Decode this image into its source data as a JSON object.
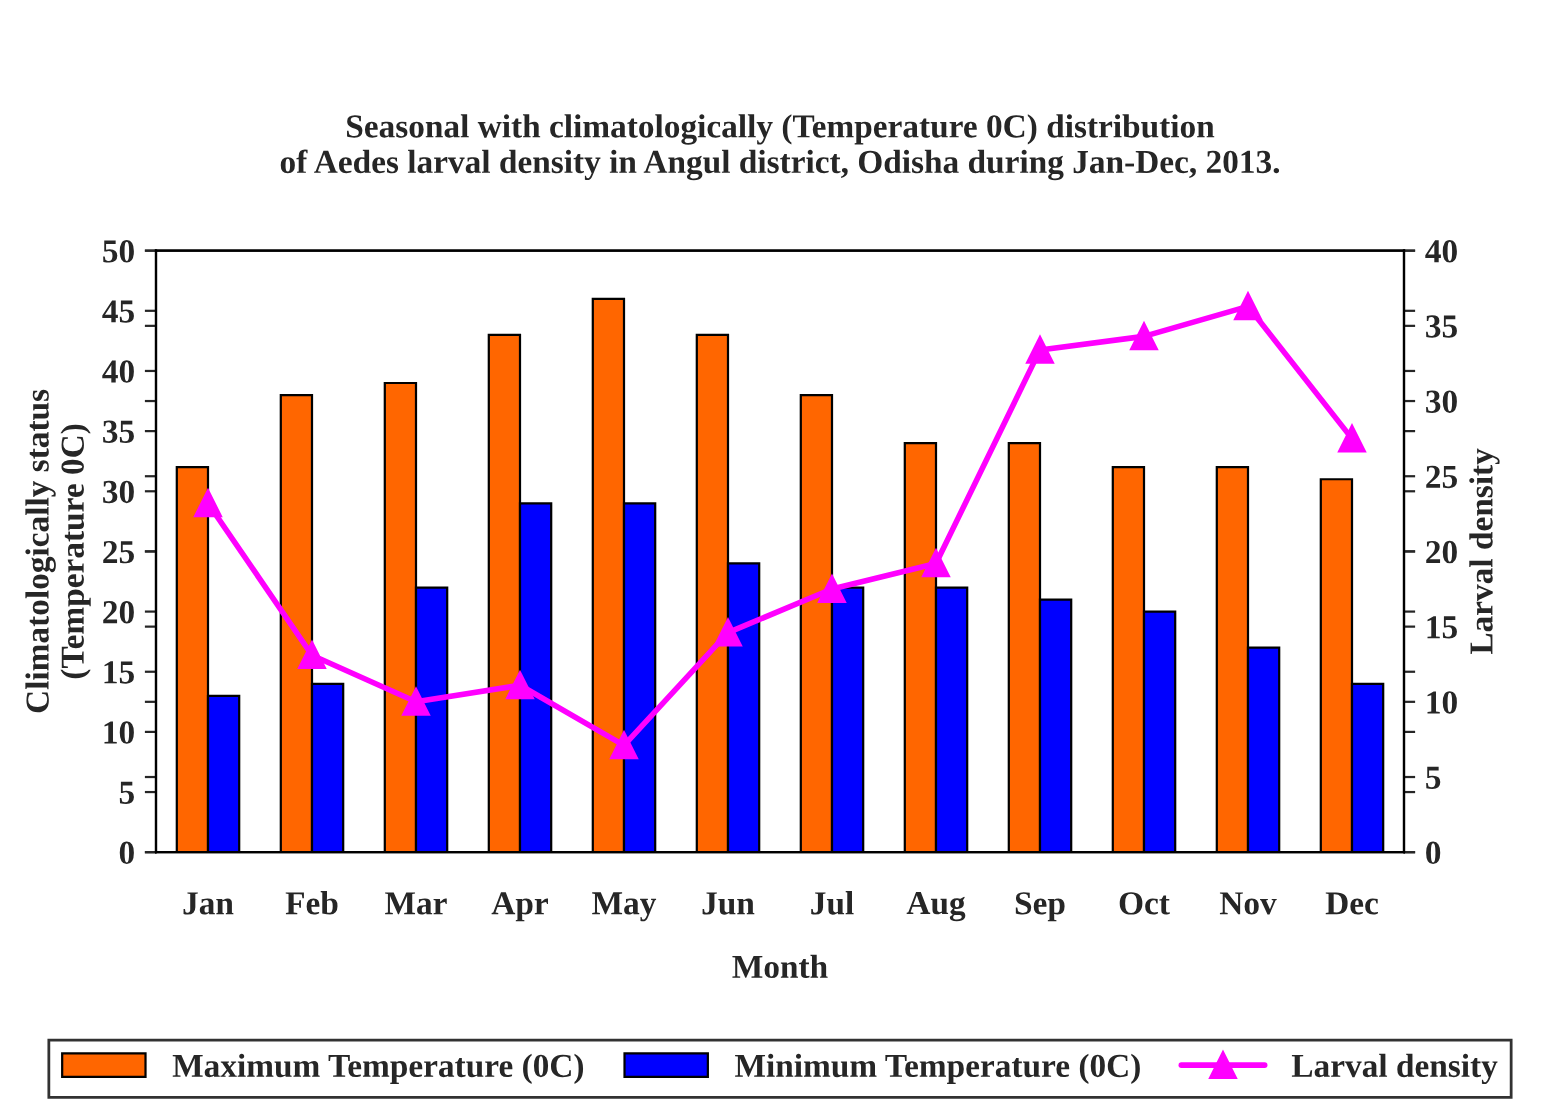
{
  "chart_data": {
    "type": "bar",
    "title": "Seasonal with climatologically (Temperature 0C) distribution\nof Aedes larval density in Angul district, Odisha during Jan-Dec, 2013.",
    "xlabel": "Month",
    "ylabel": "Climatologically status\n(Temperature 0C)",
    "y2label": "Larval density",
    "categories": [
      "Jan",
      "Feb",
      "Mar",
      "Apr",
      "May",
      "Jun",
      "Jul",
      "Aug",
      "Sep",
      "Oct",
      "Nov",
      "Dec"
    ],
    "series": [
      {
        "name": "Maximum Temperature (0C)",
        "color": "#ff6600",
        "values": [
          32,
          38,
          39,
          43,
          46,
          43,
          38,
          34,
          34,
          32,
          32,
          31
        ]
      },
      {
        "name": "Minimum Temperature (0C)",
        "color": "#0000ff",
        "values": [
          13,
          14,
          22,
          29,
          29,
          24,
          22,
          22,
          21,
          20,
          17,
          14
        ]
      },
      {
        "name": "Larval density",
        "type": "line",
        "axis": "y2",
        "color": "#ff00ff",
        "values": [
          23.2,
          13.1,
          10.0,
          11.1,
          7.1,
          14.6,
          17.5,
          19.2,
          33.4,
          34.3,
          36.3,
          27.5
        ]
      }
    ],
    "ylim": [
      0,
      50
    ],
    "yticks": [
      0,
      5,
      10,
      15,
      20,
      25,
      30,
      35,
      40,
      45,
      50
    ],
    "y2lim": [
      0,
      40
    ],
    "y2ticks": [
      0,
      5,
      10,
      15,
      20,
      25,
      30,
      35,
      40
    ],
    "marker": "triangle",
    "grid": false,
    "legend": "bottom"
  }
}
